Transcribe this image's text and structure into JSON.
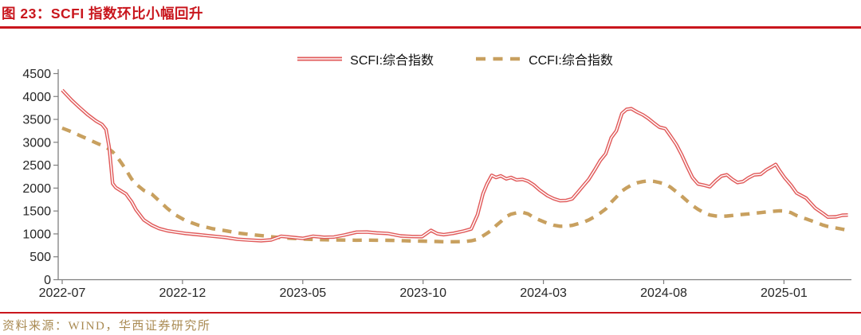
{
  "header": {
    "title": "图 23：SCFI 指数环比小幅回升"
  },
  "footer": {
    "source": "资料来源：WIND，华西证券研究所"
  },
  "colors": {
    "accent_red": "#c9161d",
    "scfi_line": "#e15b5b",
    "ccfi_line": "#c8a05f",
    "axis_gray": "#7f7f7f",
    "tick_text": "#262626",
    "source_text": "#a98a52"
  },
  "chart_data": {
    "type": "line",
    "title": "",
    "legend_position": "top-center",
    "grid": false,
    "ylim": [
      0,
      4500
    ],
    "y_ticks": [
      0,
      500,
      1000,
      1500,
      2000,
      2500,
      3000,
      3500,
      4000,
      4500
    ],
    "x_tick_labels": [
      "2022-07",
      "2022-12",
      "2023-05",
      "2023-10",
      "2024-03",
      "2024-08",
      "2025-01"
    ],
    "x_tick_interval_months": 5,
    "dates": [
      "2022-07-01",
      "2022-07-13",
      "2022-07-23",
      "2022-08-03",
      "2022-08-13",
      "2022-08-21",
      "2022-08-26",
      "2022-08-30",
      "2022-09-04",
      "2022-09-08",
      "2022-09-15",
      "2022-09-21",
      "2022-09-25",
      "2022-09-28",
      "2022-10-03",
      "2022-10-13",
      "2022-10-23",
      "2022-11-02",
      "2022-11-12",
      "2022-11-22",
      "2022-12-05",
      "2022-12-22",
      "2023-01-08",
      "2023-01-24",
      "2023-02-10",
      "2023-02-25",
      "2023-03-09",
      "2023-03-22",
      "2023-04-04",
      "2023-04-18",
      "2023-05-01",
      "2023-05-14",
      "2023-05-28",
      "2023-06-10",
      "2023-06-23",
      "2023-07-08",
      "2023-07-21",
      "2023-08-03",
      "2023-08-17",
      "2023-09-03",
      "2023-09-17",
      "2023-09-30",
      "2023-10-11",
      "2023-10-19",
      "2023-10-27",
      "2023-11-09",
      "2023-11-22",
      "2023-12-01",
      "2023-12-09",
      "2023-12-16",
      "2023-12-21",
      "2023-12-27",
      "2024-01-02",
      "2024-01-08",
      "2024-01-15",
      "2024-01-21",
      "2024-01-28",
      "2024-02-05",
      "2024-02-12",
      "2024-02-19",
      "2024-02-27",
      "2024-03-06",
      "2024-03-14",
      "2024-03-22",
      "2024-03-30",
      "2024-04-07",
      "2024-04-14",
      "2024-04-21",
      "2024-04-28",
      "2024-05-05",
      "2024-05-12",
      "2024-05-19",
      "2024-05-26",
      "2024-06-02",
      "2024-06-09",
      "2024-06-15",
      "2024-06-21",
      "2024-06-28",
      "2024-07-05",
      "2024-07-12",
      "2024-07-19",
      "2024-07-26",
      "2024-08-03",
      "2024-08-10",
      "2024-08-17",
      "2024-08-24",
      "2024-08-31",
      "2024-09-07",
      "2024-09-14",
      "2024-09-22",
      "2024-09-29",
      "2024-10-06",
      "2024-10-13",
      "2024-10-20",
      "2024-10-27",
      "2024-11-03",
      "2024-11-10",
      "2024-11-17",
      "2024-11-24",
      "2024-12-02",
      "2024-12-09",
      "2024-12-16",
      "2024-12-21",
      "2024-12-26",
      "2025-01-02",
      "2025-01-10",
      "2025-01-17",
      "2025-01-29",
      "2025-02-10",
      "2025-02-20",
      "2025-02-26",
      "2025-03-06",
      "2025-03-14",
      "2025-03-21"
    ],
    "series": [
      {
        "name": "SCFI:综合指数",
        "style": "solid-double",
        "values": [
          4140,
          3920,
          3760,
          3600,
          3470,
          3390,
          3280,
          2900,
          2100,
          2010,
          1935,
          1870,
          1770,
          1705,
          1530,
          1305,
          1190,
          1115,
          1070,
          1042,
          1010,
          982,
          952,
          925,
          882,
          866,
          851,
          868,
          948,
          926,
          901,
          949,
          926,
          931,
          974,
          1038,
          1041,
          1022,
          1009,
          956,
          944,
          940,
          1078,
          1005,
          983,
          1012,
          1062,
          1108,
          1420,
          1880,
          2090,
          2280,
          2230,
          2268,
          2202,
          2232,
          2178,
          2190,
          2150,
          2072,
          1952,
          1836,
          1768,
          1726,
          1731,
          1765,
          1905,
          2050,
          2190,
          2395,
          2600,
          2750,
          3100,
          3250,
          3630,
          3720,
          3733,
          3662,
          3600,
          3520,
          3420,
          3330,
          3300,
          3130,
          2950,
          2720,
          2460,
          2230,
          2090,
          2060,
          2030,
          2160,
          2262,
          2290,
          2192,
          2122,
          2142,
          2225,
          2288,
          2302,
          2398,
          2465,
          2518,
          2380,
          2222,
          2062,
          1892,
          1780,
          1565,
          1445,
          1368,
          1372,
          1408,
          1412
        ]
      },
      {
        "name": "CCFI:综合指数",
        "style": "dashed",
        "values": [
          3310,
          3230,
          3150,
          3070,
          2990,
          2930,
          2890,
          2850,
          2790,
          2720,
          2550,
          2400,
          2280,
          2200,
          2090,
          1950,
          1870,
          1720,
          1560,
          1420,
          1290,
          1185,
          1115,
          1072,
          1020,
          988,
          962,
          938,
          918,
          903,
          890,
          878,
          872,
          869,
          866,
          861,
          864,
          862,
          860,
          853,
          846,
          842,
          838,
          834,
          829,
          828,
          832,
          849,
          882,
          958,
          1012,
          1082,
          1180,
          1268,
          1378,
          1432,
          1460,
          1470,
          1438,
          1360,
          1300,
          1232,
          1190,
          1168,
          1170,
          1186,
          1220,
          1252,
          1305,
          1375,
          1455,
          1545,
          1690,
          1805,
          1935,
          2005,
          2065,
          2115,
          2142,
          2158,
          2148,
          2122,
          2090,
          2015,
          1920,
          1820,
          1715,
          1620,
          1535,
          1460,
          1412,
          1392,
          1385,
          1390,
          1402,
          1415,
          1426,
          1437,
          1450,
          1464,
          1478,
          1490,
          1498,
          1504,
          1500,
          1462,
          1400,
          1328,
          1258,
          1192,
          1163,
          1130,
          1103,
          1078
        ]
      }
    ]
  }
}
